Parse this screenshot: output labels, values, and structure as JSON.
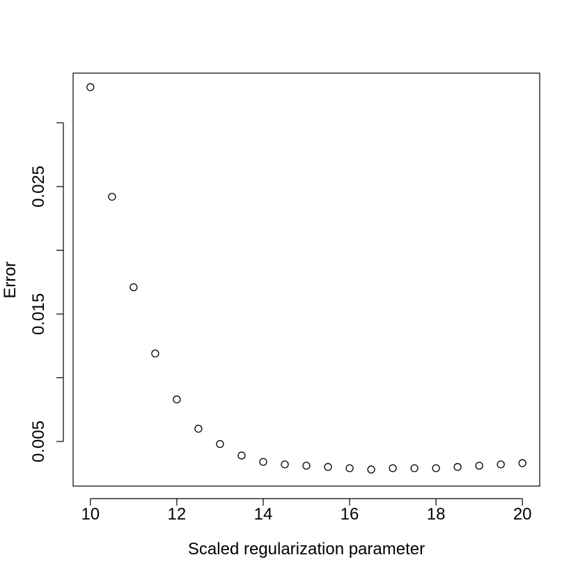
{
  "chart_data": {
    "type": "scatter",
    "title": "",
    "xlabel": "Scaled regularization parameter",
    "ylabel": "Error",
    "xlim": [
      9.6,
      20.4
    ],
    "ylim": [
      0.0015,
      0.0339
    ],
    "x_ticks": [
      10,
      12,
      14,
      16,
      18,
      20
    ],
    "x_tick_labels": [
      "10",
      "12",
      "14",
      "16",
      "18",
      "20"
    ],
    "y_ticks": [
      0.005,
      0.01,
      0.015,
      0.02,
      0.025,
      0.03
    ],
    "y_tick_labels": [
      "0.005",
      "",
      "0.015",
      "",
      "0.025",
      ""
    ],
    "grid": false,
    "x": [
      10,
      10.5,
      11,
      11.5,
      12,
      12.5,
      13,
      13.5,
      14,
      14.5,
      15,
      15.5,
      16,
      16.5,
      17,
      17.5,
      18,
      18.5,
      19,
      19.5,
      20
    ],
    "y": [
      0.0328,
      0.0242,
      0.0171,
      0.0119,
      0.0083,
      0.006,
      0.0048,
      0.0039,
      0.0034,
      0.0032,
      0.0031,
      0.003,
      0.0029,
      0.0028,
      0.0029,
      0.0029,
      0.0029,
      0.003,
      0.0031,
      0.0032,
      0.0033
    ]
  }
}
